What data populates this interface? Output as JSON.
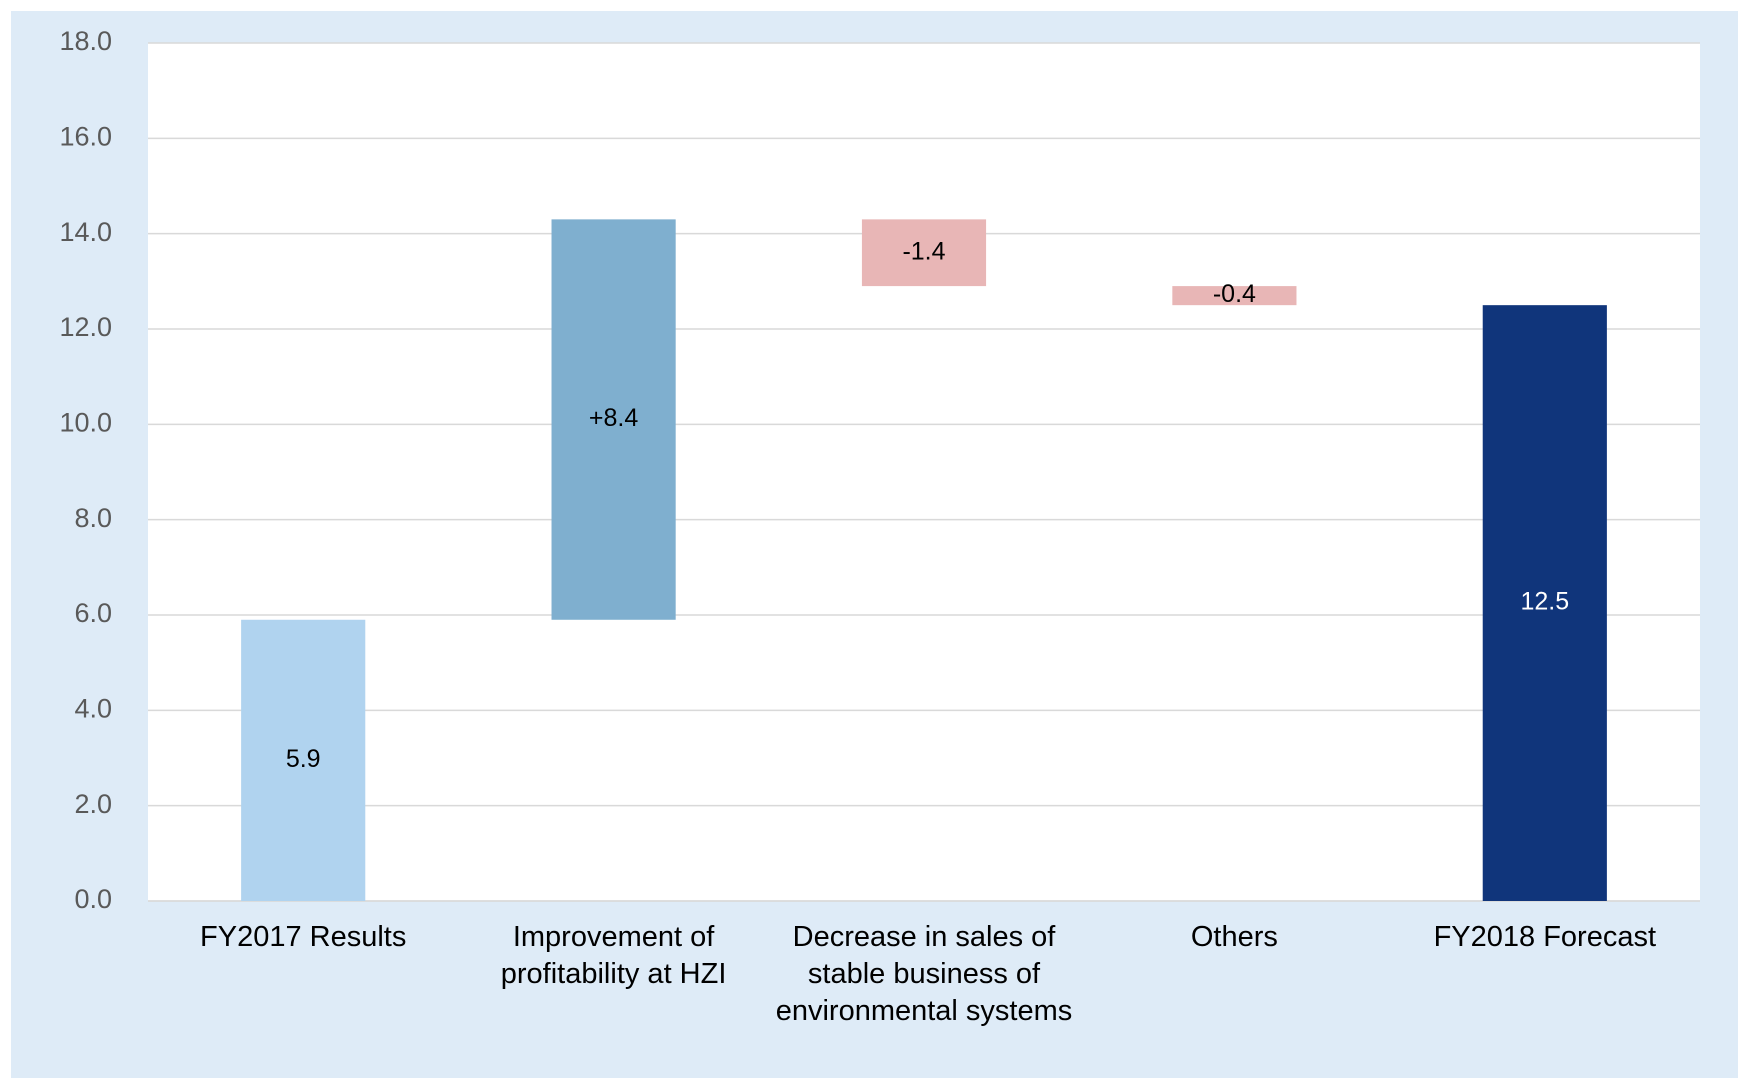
{
  "chart_data": {
    "type": "waterfall",
    "categories": [
      "FY2017 Results",
      "Improvement of profitability at HZI",
      "Decrease in sales of stable business of environmental systems",
      "Others",
      "FY2018 Forecast"
    ],
    "values": [
      5.9,
      8.4,
      -1.4,
      -0.4,
      12.5
    ],
    "value_labels": [
      "5.9",
      "+8.4",
      "-1.4",
      "-0.4",
      "12.5"
    ],
    "colors": [
      "#b0d3ef",
      "#7fafcf",
      "#e8b6b6",
      "#e8b6b6",
      "#10357b"
    ],
    "label_colors": [
      "#000000",
      "#000000",
      "#000000",
      "#000000",
      "#ffffff"
    ],
    "ylim": [
      0,
      18
    ],
    "yticks": [
      {
        "value": 0,
        "label": "0.0"
      },
      {
        "value": 2,
        "label": "2.0"
      },
      {
        "value": 4,
        "label": "4.0"
      },
      {
        "value": 6,
        "label": "6.0"
      },
      {
        "value": 8,
        "label": "8.0"
      },
      {
        "value": 10,
        "label": "10.0"
      },
      {
        "value": 12,
        "label": "12.0"
      },
      {
        "value": 14,
        "label": "14.0"
      },
      {
        "value": 16,
        "label": "16.0"
      },
      {
        "value": 18,
        "label": "18.0"
      }
    ],
    "grid": true
  }
}
